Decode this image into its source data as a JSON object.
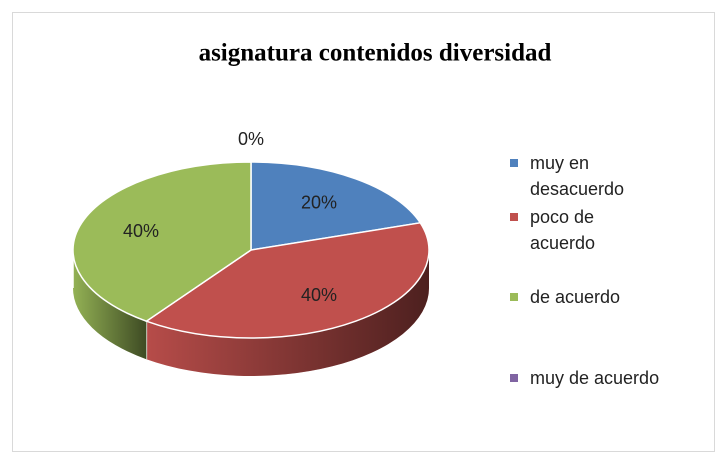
{
  "chart_data": {
    "type": "pie3d",
    "title": "asignatura contenidos diversidad",
    "categories": [
      "muy en desacuerdo",
      "poco de acuerdo",
      "de acuerdo",
      "muy de acuerdo"
    ],
    "values": [
      20,
      40,
      40,
      0
    ],
    "value_labels": [
      "20%",
      "40%",
      "40%",
      "0%"
    ],
    "colors": [
      "#4f81bd",
      "#c0504d",
      "#9bbb59",
      "#8064a2"
    ],
    "legend": "right"
  }
}
